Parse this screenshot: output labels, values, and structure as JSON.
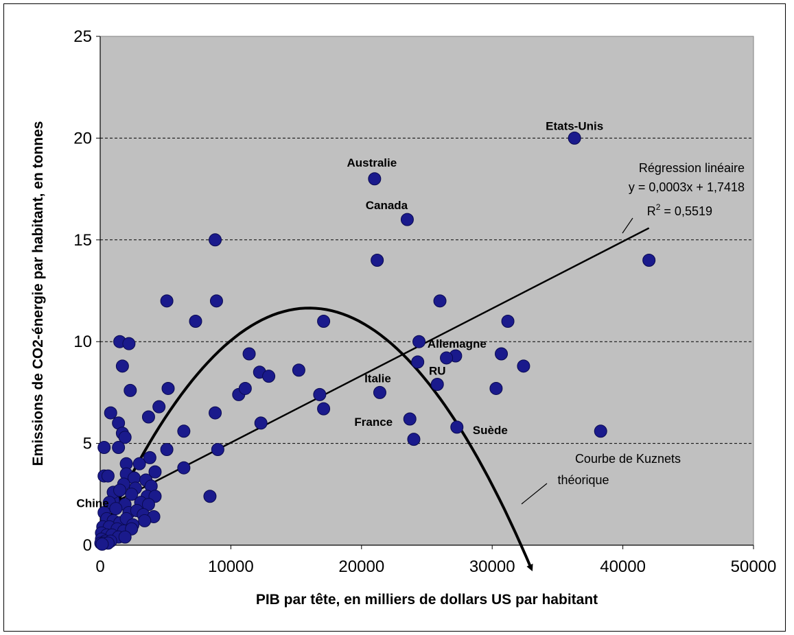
{
  "chart_data": {
    "type": "scatter",
    "xlabel": "PIB par tête, en milliers de dollars US par habitant",
    "ylabel": "Emissions de CO2-énergie par habitant, en tonnes",
    "xlim": [
      0,
      50000
    ],
    "ylim": [
      0,
      25
    ],
    "x_ticks": [
      "0",
      "10000",
      "20000",
      "30000",
      "40000",
      "50000"
    ],
    "y_ticks": [
      "0",
      "5",
      "10",
      "15",
      "20",
      "25"
    ],
    "grid": "horizontal dashed",
    "colors": {
      "plot_bg": "#c0c0c0",
      "marker": "#1a1a8c",
      "line": "#000000"
    },
    "points": [
      {
        "x": 36300,
        "y": 20.0,
        "label": "Etats-Unis"
      },
      {
        "x": 21000,
        "y": 18.0,
        "label": "Australie"
      },
      {
        "x": 23500,
        "y": 16.0,
        "label": "Canada"
      },
      {
        "x": 27200,
        "y": 9.3,
        "label": "Allemagne"
      },
      {
        "x": 25800,
        "y": 7.9,
        "label": "RU"
      },
      {
        "x": 21400,
        "y": 7.5,
        "label": "Italie"
      },
      {
        "x": 23700,
        "y": 6.2,
        "label": "France"
      },
      {
        "x": 27300,
        "y": 5.8,
        "label": "Suède"
      },
      {
        "x": 1000,
        "y": 2.2,
        "label": "Chine"
      },
      {
        "x": 8800,
        "y": 15.0
      },
      {
        "x": 21200,
        "y": 14.0
      },
      {
        "x": 42000,
        "y": 14.0
      },
      {
        "x": 5100,
        "y": 12.0
      },
      {
        "x": 8900,
        "y": 12.0
      },
      {
        "x": 26000,
        "y": 12.0
      },
      {
        "x": 7300,
        "y": 11.0
      },
      {
        "x": 17100,
        "y": 11.0
      },
      {
        "x": 31200,
        "y": 11.0
      },
      {
        "x": 1500,
        "y": 10.0
      },
      {
        "x": 2200,
        "y": 9.9
      },
      {
        "x": 24400,
        "y": 10.0
      },
      {
        "x": 1700,
        "y": 8.8
      },
      {
        "x": 11400,
        "y": 9.4
      },
      {
        "x": 30700,
        "y": 9.4
      },
      {
        "x": 24300,
        "y": 9.0
      },
      {
        "x": 26500,
        "y": 9.2
      },
      {
        "x": 12200,
        "y": 8.5
      },
      {
        "x": 12900,
        "y": 8.3
      },
      {
        "x": 15200,
        "y": 8.6
      },
      {
        "x": 32400,
        "y": 8.8
      },
      {
        "x": 2300,
        "y": 7.6
      },
      {
        "x": 5200,
        "y": 7.7
      },
      {
        "x": 10600,
        "y": 7.4
      },
      {
        "x": 11100,
        "y": 7.7
      },
      {
        "x": 16800,
        "y": 7.4
      },
      {
        "x": 30300,
        "y": 7.7
      },
      {
        "x": 800,
        "y": 6.5
      },
      {
        "x": 1400,
        "y": 6.0
      },
      {
        "x": 3700,
        "y": 6.3
      },
      {
        "x": 4500,
        "y": 6.8
      },
      {
        "x": 8800,
        "y": 6.5
      },
      {
        "x": 17100,
        "y": 6.7
      },
      {
        "x": 12300,
        "y": 6.0
      },
      {
        "x": 6400,
        "y": 5.6
      },
      {
        "x": 1700,
        "y": 5.5
      },
      {
        "x": 1900,
        "y": 5.3
      },
      {
        "x": 24000,
        "y": 5.2
      },
      {
        "x": 38300,
        "y": 5.6
      },
      {
        "x": 300,
        "y": 4.8
      },
      {
        "x": 1400,
        "y": 4.8
      },
      {
        "x": 5100,
        "y": 4.7
      },
      {
        "x": 9000,
        "y": 4.7
      },
      {
        "x": 2000,
        "y": 4.0
      },
      {
        "x": 3000,
        "y": 4.0
      },
      {
        "x": 3800,
        "y": 4.3
      },
      {
        "x": 6400,
        "y": 3.8
      },
      {
        "x": 4200,
        "y": 3.6
      },
      {
        "x": 300,
        "y": 3.4
      },
      {
        "x": 600,
        "y": 3.4
      },
      {
        "x": 2000,
        "y": 3.5
      },
      {
        "x": 2600,
        "y": 3.3
      },
      {
        "x": 3500,
        "y": 3.2
      },
      {
        "x": 1800,
        "y": 3.0
      },
      {
        "x": 2700,
        "y": 2.8
      },
      {
        "x": 3900,
        "y": 2.9
      },
      {
        "x": 1000,
        "y": 2.6
      },
      {
        "x": 1500,
        "y": 2.7
      },
      {
        "x": 2400,
        "y": 2.5
      },
      {
        "x": 3600,
        "y": 2.4
      },
      {
        "x": 4200,
        "y": 2.4
      },
      {
        "x": 8400,
        "y": 2.4
      },
      {
        "x": 700,
        "y": 2.1
      },
      {
        "x": 1900,
        "y": 2.0
      },
      {
        "x": 3100,
        "y": 2.1
      },
      {
        "x": 3700,
        "y": 2.0
      },
      {
        "x": 300,
        "y": 1.6
      },
      {
        "x": 1200,
        "y": 1.8
      },
      {
        "x": 2200,
        "y": 1.6
      },
      {
        "x": 2800,
        "y": 1.7
      },
      {
        "x": 3300,
        "y": 1.5
      },
      {
        "x": 4100,
        "y": 1.4
      },
      {
        "x": 500,
        "y": 1.3
      },
      {
        "x": 1000,
        "y": 1.2
      },
      {
        "x": 1500,
        "y": 1.1
      },
      {
        "x": 2000,
        "y": 1.3
      },
      {
        "x": 2500,
        "y": 1.0
      },
      {
        "x": 3400,
        "y": 1.2
      },
      {
        "x": 200,
        "y": 0.9
      },
      {
        "x": 700,
        "y": 0.9
      },
      {
        "x": 1300,
        "y": 0.8
      },
      {
        "x": 1800,
        "y": 0.7
      },
      {
        "x": 2400,
        "y": 0.8
      },
      {
        "x": 100,
        "y": 0.6
      },
      {
        "x": 500,
        "y": 0.5
      },
      {
        "x": 900,
        "y": 0.5
      },
      {
        "x": 1400,
        "y": 0.4
      },
      {
        "x": 1900,
        "y": 0.4
      },
      {
        "x": 100,
        "y": 0.3
      },
      {
        "x": 400,
        "y": 0.2
      },
      {
        "x": 800,
        "y": 0.2
      },
      {
        "x": 50,
        "y": 0.1
      },
      {
        "x": 250,
        "y": 0.1
      },
      {
        "x": 600,
        "y": 0.1
      },
      {
        "x": 150,
        "y": 0.05
      }
    ],
    "regression": {
      "title": "Régression linéaire",
      "equation": "y = 0,0003x + 1,7418",
      "r2_prefix": "R",
      "r2_sup": "2",
      "r2_value": " = 0,5519",
      "slope": 0.0003295,
      "intercept": 1.7418,
      "x_range": [
        0,
        42000
      ]
    },
    "kuznets": {
      "label_line1": "Courbe de Kuznets",
      "label_line2": "théorique",
      "peak": [
        16000,
        11.65
      ],
      "start": [
        0,
        0.3
      ],
      "end": [
        33000,
        -0.5
      ]
    }
  }
}
